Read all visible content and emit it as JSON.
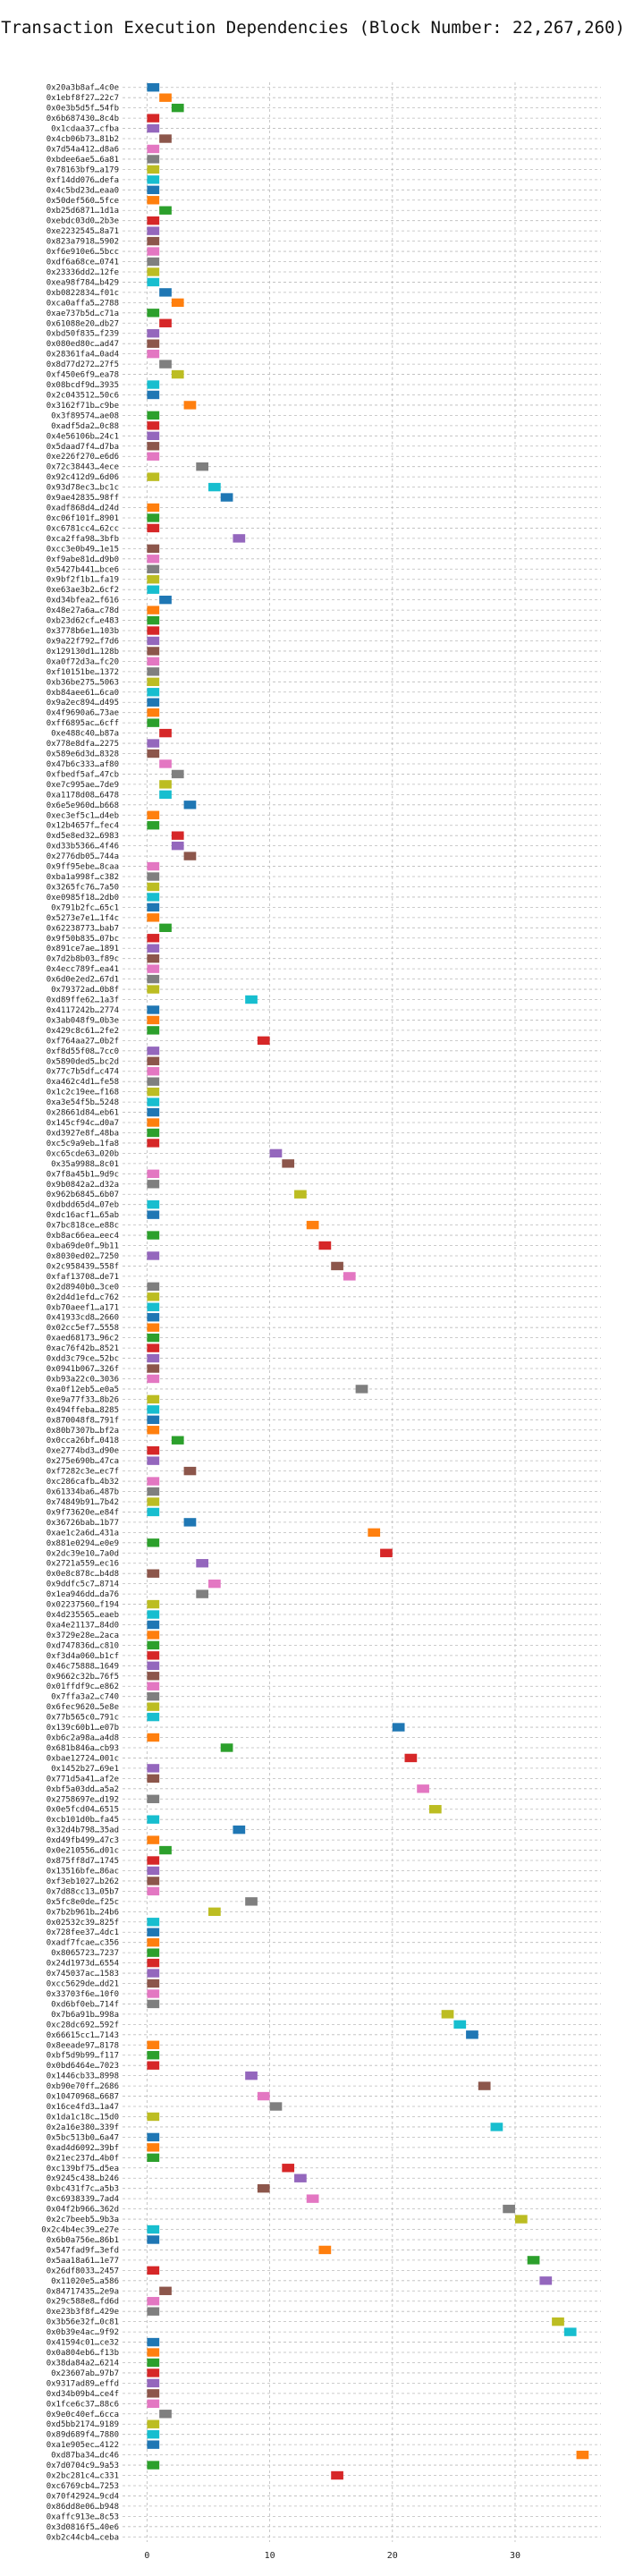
{
  "title": "Transaction Execution Dependencies (Block Number: 22,267,260)",
  "colors": [
    "#1f77b4",
    "#ff7f0e",
    "#2ca02c",
    "#d62728",
    "#9467bd",
    "#8c564b",
    "#e377c2",
    "#7f7f7f",
    "#bcbd22",
    "#17becf"
  ],
  "chart_data": {
    "type": "gantt",
    "title": "Transaction Execution Dependencies (Block Number: 22,267,260)",
    "xlabel": "",
    "ylabel": "",
    "xlim": [
      -2,
      37
    ],
    "xticks": [
      0,
      10,
      20,
      30
    ],
    "grid": true,
    "legend": "none",
    "categories": [
      "0x20a3b8af…4c0e",
      "0x1ebf8f27…22c7",
      "0x0e3b5d5f…54fb",
      "0x6b687430…8c4b",
      "0x1cdaa37…cfba",
      "0x4cb06b73…81b2",
      "0x7d54a412…d8a6",
      "0xbdee6ae5…6a81",
      "0x78163bf9…a179",
      "0xf14dd076…defa",
      "0x4c5bd23d…eaa0",
      "0x50def560…5fce",
      "0xb25d6871…1d1a",
      "0xebdc03d0…2b3e",
      "0xe2232545…8a71",
      "0x823a7918…5902",
      "0xf6e910e6…5bcc",
      "0xdf6a68ce…0741",
      "0x23336dd2…12fe",
      "0xea98f784…b429",
      "0xb0822834…f01c",
      "0xca0affa5…2788",
      "0xae737b5d…c71a",
      "0x61088e20…db27",
      "0xbd50f835…f239",
      "0x080ed80c…ad47",
      "0x28361fa4…0ad4",
      "0x8d77d272…27f5",
      "0xf450e6f9…ea78",
      "0x08bcdf9d…3935",
      "0x2c043512…50c6",
      "0x3162f71b…c9be",
      "0x3f89574…ae08",
      "0xadf5da2…0c88",
      "0x4e56106b…24c1",
      "0x5daad7f4…d7ba",
      "0xe226f270…e6d6",
      "0x72c38443…4ece",
      "0x92c412d9…6d06",
      "0x93d78ec3…bc1c",
      "0x9ae42835…98ff",
      "0xadf868d4…d24d",
      "0xc06f101f…8901",
      "0xc6781cc4…62cc",
      "0xca2ffa98…3bfb",
      "0xcc3e0b49…1e15",
      "0xf9abe81d…d9b0",
      "0x5427b441…bce6",
      "0x9bf2f1b1…fa19",
      "0xe63ae3b2…6cf2",
      "0xd34bfea2…f616",
      "0x48e27a6a…c78d",
      "0xb23d62cf…e483",
      "0x3778b6e1…103b",
      "0x9a22f792…f7d6",
      "0x129130d1…128b",
      "0xa0f72d3a…fc20",
      "0xf10151be…1372",
      "0xb36be275…5063",
      "0xb84aee61…6ca0",
      "0x9a2ec894…d495",
      "0x4f9690a6…73ae",
      "0xff6895ac…6cff",
      "0xe488c40…b87a",
      "0x778e8dfa…2275",
      "0x589e6d3d…8328",
      "0x47b6c333…af80",
      "0xfbedf5af…47cb",
      "0xe7c995ae…7de9",
      "0xa1178d08…6478",
      "0x6e5e960d…b668",
      "0xec3ef5c1…d4eb",
      "0x12b4657f…fec4",
      "0xd5e8ed32…6983",
      "0xd33b5366…4f46",
      "0x2776db05…744a",
      "0x9ff95ebe…8caa",
      "0xba1a998f…c382",
      "0x3265fc76…7a50",
      "0xe0985f18…2db0",
      "0x791b2fc…65c1",
      "0x5273e7e1…1f4c",
      "0x62238773…bab7",
      "0x9f50b835…07bc",
      "0x891ce7ae…1891",
      "0x7d2b8b03…f89c",
      "0x4ecc789f…ea41",
      "0x6d0e2ed2…67d1",
      "0x79372ad…0b8f",
      "0xd89ffe62…1a3f",
      "0x4117242b…2774",
      "0x3ab048f9…0b3e",
      "0x429c8c61…2fe2",
      "0xf764aa27…0b2f",
      "0xf8d55f08…7cc0",
      "0x5890ded5…bc2d",
      "0x77c7b5df…c474",
      "0xa462c4d1…fe58",
      "0x1c2c19ee…f168",
      "0xa3e54f5b…5248",
      "0x28661d84…eb61",
      "0x145cf94c…d0a7",
      "0xd3927e8f…48ba",
      "0xc5c9a9eb…1fa8",
      "0xc65cde63…020b",
      "0x35a9988…8c01",
      "0x7f8a45b1…9d9c",
      "0x9b0842a2…d32a",
      "0x962b6845…6b07",
      "0xdbdd65d4…07eb",
      "0xdc16acf1…65ab",
      "0x7bc818ce…e88c",
      "0xb8ac66ea…eec4",
      "0xba69de0f…9b11",
      "0x8030ed02…7250",
      "0x2c958439…558f",
      "0xfaf13708…de71",
      "0x2d8940b0…3ce0",
      "0x2d4d1efd…c762",
      "0xb70aeef1…a171",
      "0x41933cd8…2660",
      "0x02cc5ef7…5558",
      "0xaed68173…96c2",
      "0xac76f42b…8521",
      "0xdd3c79ce…52bc",
      "0x0941b067…326f",
      "0xb93a22c0…3036",
      "0xa0f12eb5…e0a5",
      "0xe9a77f33…8b26",
      "0x494ffeba…8285",
      "0x870048f8…791f",
      "0x80b7307b…bf2a",
      "0x0cca26bf…0418",
      "0xe2774bd3…d90e",
      "0x275e690b…47ca",
      "0xf7282c3e…ec7f",
      "0xc286cafb…4b32",
      "0x61334ba6…487b",
      "0x74849b91…7b42",
      "0x9f73620e…e84f",
      "0x36726bab…1b77",
      "0xae1c2a6d…431a",
      "0x881e0294…e0e9",
      "0x2dc39e10…7a0d",
      "0x2721a559…ec16",
      "0x0e8c878c…b4d8",
      "0x9ddfc5c7…8714",
      "0x1ea946dd…da76",
      "0x02237560…f194",
      "0x4d235565…eaeb",
      "0xa4e21137…84d0",
      "0x3729e28e…2aca",
      "0xd747836d…c810",
      "0xf3d4a060…b1cf",
      "0x46c75888…1649",
      "0x9662c32b…76f5",
      "0x01ffdf9c…e862",
      "0x7ffa3a2…c740",
      "0x6fec9620…5e8e",
      "0x77b565c0…791c",
      "0x139c60b1…e07b",
      "0xb6c2a98a…a4d8",
      "0x681b846a…cb93",
      "0xbae12724…001c",
      "0x1452b27…69e1",
      "0x771d5a41…af2e",
      "0xbf5a03dd…a5a2",
      "0x2758697e…d192",
      "0x0e5fcd04…6515",
      "0xcb101d0b…fa45",
      "0x32d4b798…35ad",
      "0xd49fb499…47c3",
      "0x0e210556…d01c",
      "0x875ff8d7…1745",
      "0x13516bfe…86ac",
      "0xf3eb1027…b262",
      "0x7d88cc13…05b7",
      "0x5fc8e0de…f25c",
      "0x7b2b961b…24b6",
      "0x02532c39…825f",
      "0x728fee37…4dc1",
      "0xadf7fcae…c356",
      "0x8065723…7237",
      "0x24d1973d…6554",
      "0x745037ac…1583",
      "0xcc5629de…dd21",
      "0x33703f6e…10f0",
      "0xd6bf0eb…714f",
      "0x7b6a91b…998a",
      "0xc28dc692…592f",
      "0x66615cc1…7143",
      "0x8eeade97…8178",
      "0xbf5d9b99…f117",
      "0x0bd6464e…7023",
      "0x1446cb33…8998",
      "0xb90e70ff…2686",
      "0x10470968…6687",
      "0x16ce4fd3…1a47",
      "0x1da1c18c…15d0",
      "0x2a16e380…339f",
      "0x5bc513b0…6a47",
      "0xad4d6092…39bf",
      "0x21ec237d…4b0f",
      "0xc139bf75…d5ea",
      "0x9245c438…b246",
      "0xbc431f7c…a5b3",
      "0xc6938339…7ad4",
      "0x04f2b966…362d",
      "0x2c7beeb5…9b3a",
      "0x2c4b4ec39…e27e",
      "0x6b0a756e…86b1",
      "0x547fad9f…3efd",
      "0x5aa18a61…1e77",
      "0x26df8033…2457",
      "0x11020e5…a586",
      "0x84717435…2e9a",
      "0x29c588e8…fd6d",
      "0xe23b3f8f…429e",
      "0x3b56e32f…0c81",
      "0x0b39e4ac…9f92",
      "0x41594c01…ce32",
      "0x0a804eb6…f13b",
      "0x38da84a2…6214",
      "0x23607ab…97b7",
      "0x9317ad89…effd",
      "0xd34b09b4…ce4f",
      "0x1fce6c37…88c6",
      "0x9e0c40ef…6cca",
      "0xd5bb2174…9189",
      "0x89d689f4…7880",
      "0xa1e905ec…4122",
      "0xd87ba34…dc46",
      "0x7d0704c9…9a53",
      "0x2bc281c4…c331",
      "0xc6769cb4…7253",
      "0x70f42924…9cd4",
      "0x86dd8e06…b948",
      "0xaffc913e…8c53",
      "0x3d0816f5…40e6",
      "0xb2c44cb4…ceba"
    ],
    "bars": [
      {
        "start": 0,
        "end": 1
      },
      {
        "start": 1,
        "end": 2
      },
      {
        "start": 2,
        "end": 3
      },
      {
        "start": 0,
        "end": 1
      },
      {
        "start": 0,
        "end": 1
      },
      {
        "start": 1,
        "end": 2
      },
      {
        "start": 0,
        "end": 1
      },
      {
        "start": 0,
        "end": 1
      },
      {
        "start": 0,
        "end": 1
      },
      {
        "start": 0,
        "end": 1
      },
      {
        "start": 0,
        "end": 1
      },
      {
        "start": 0,
        "end": 1
      },
      {
        "start": 1,
        "end": 2
      },
      {
        "start": 0,
        "end": 1
      },
      {
        "start": 0,
        "end": 1
      },
      {
        "start": 0,
        "end": 1
      },
      {
        "start": 0,
        "end": 1
      },
      {
        "start": 0,
        "end": 1
      },
      {
        "start": 0,
        "end": 1
      },
      {
        "start": 0,
        "end": 1
      },
      {
        "start": 1,
        "end": 2
      },
      {
        "start": 2,
        "end": 3
      },
      {
        "start": 0,
        "end": 1
      },
      {
        "start": 1,
        "end": 2
      },
      {
        "start": 0,
        "end": 1
      },
      {
        "start": 0,
        "end": 1
      },
      {
        "start": 0,
        "end": 1
      },
      {
        "start": 1,
        "end": 2
      },
      {
        "start": 2,
        "end": 3
      },
      {
        "start": 0,
        "end": 1
      },
      {
        "start": 0,
        "end": 1
      },
      {
        "start": 3,
        "end": 4
      },
      {
        "start": 0,
        "end": 1
      },
      {
        "start": 0,
        "end": 1
      },
      {
        "start": 0,
        "end": 1
      },
      {
        "start": 0,
        "end": 1
      },
      {
        "start": 0,
        "end": 1
      },
      {
        "start": 4,
        "end": 5
      },
      {
        "start": 0,
        "end": 1
      },
      {
        "start": 5,
        "end": 6
      },
      {
        "start": 6,
        "end": 7
      },
      {
        "start": 0,
        "end": 1
      },
      {
        "start": 0,
        "end": 1
      },
      {
        "start": 0,
        "end": 1
      },
      {
        "start": 7,
        "end": 8
      },
      {
        "start": 0,
        "end": 1
      },
      {
        "start": 0,
        "end": 1
      },
      {
        "start": 0,
        "end": 1
      },
      {
        "start": 0,
        "end": 1
      },
      {
        "start": 0,
        "end": 1
      },
      {
        "start": 1,
        "end": 2
      },
      {
        "start": 0,
        "end": 1
      },
      {
        "start": 0,
        "end": 1
      },
      {
        "start": 0,
        "end": 1
      },
      {
        "start": 0,
        "end": 1
      },
      {
        "start": 0,
        "end": 1
      },
      {
        "start": 0,
        "end": 1
      },
      {
        "start": 0,
        "end": 1
      },
      {
        "start": 0,
        "end": 1
      },
      {
        "start": 0,
        "end": 1
      },
      {
        "start": 0,
        "end": 1
      },
      {
        "start": 0,
        "end": 1
      },
      {
        "start": 0,
        "end": 1
      },
      {
        "start": 1,
        "end": 2
      },
      {
        "start": 0,
        "end": 1
      },
      {
        "start": 0,
        "end": 1
      },
      {
        "start": 1,
        "end": 2
      },
      {
        "start": 2,
        "end": 3
      },
      {
        "start": 1,
        "end": 2
      },
      {
        "start": 1,
        "end": 2
      },
      {
        "start": 3,
        "end": 4
      },
      {
        "start": 0,
        "end": 1
      },
      {
        "start": 0,
        "end": 1
      },
      {
        "start": 2,
        "end": 3
      },
      {
        "start": 2,
        "end": 3
      },
      {
        "start": 3,
        "end": 4
      },
      {
        "start": 0,
        "end": 1
      },
      {
        "start": 0,
        "end": 1
      },
      {
        "start": 0,
        "end": 1
      },
      {
        "start": 0,
        "end": 1
      },
      {
        "start": 0,
        "end": 1
      },
      {
        "start": 0,
        "end": 1
      },
      {
        "start": 1,
        "end": 2
      },
      {
        "start": 0,
        "end": 1
      },
      {
        "start": 0,
        "end": 1
      },
      {
        "start": 0,
        "end": 1
      },
      {
        "start": 0,
        "end": 1
      },
      {
        "start": 0,
        "end": 1
      },
      {
        "start": 0,
        "end": 1
      },
      {
        "start": 8,
        "end": 9
      },
      {
        "start": 0,
        "end": 1
      },
      {
        "start": 0,
        "end": 1
      },
      {
        "start": 0,
        "end": 1
      },
      {
        "start": 9,
        "end": 10
      },
      {
        "start": 0,
        "end": 1
      },
      {
        "start": 0,
        "end": 1
      },
      {
        "start": 0,
        "end": 1
      },
      {
        "start": 0,
        "end": 1
      },
      {
        "start": 0,
        "end": 1
      },
      {
        "start": 0,
        "end": 1
      },
      {
        "start": 0,
        "end": 1
      },
      {
        "start": 0,
        "end": 1
      },
      {
        "start": 0,
        "end": 1
      },
      {
        "start": 0,
        "end": 1
      },
      {
        "start": 10,
        "end": 11
      },
      {
        "start": 11,
        "end": 12
      },
      {
        "start": 0,
        "end": 1
      },
      {
        "start": 0,
        "end": 1
      },
      {
        "start": 12,
        "end": 13
      },
      {
        "start": 0,
        "end": 1
      },
      {
        "start": 0,
        "end": 1
      },
      {
        "start": 13,
        "end": 14
      },
      {
        "start": 0,
        "end": 1
      },
      {
        "start": 14,
        "end": 15
      },
      {
        "start": 0,
        "end": 1
      },
      {
        "start": 15,
        "end": 16
      },
      {
        "start": 16,
        "end": 17
      },
      {
        "start": 0,
        "end": 1
      },
      {
        "start": 0,
        "end": 1
      },
      {
        "start": 0,
        "end": 1
      },
      {
        "start": 0,
        "end": 1
      },
      {
        "start": 0,
        "end": 1
      },
      {
        "start": 0,
        "end": 1
      },
      {
        "start": 0,
        "end": 1
      },
      {
        "start": 0,
        "end": 1
      },
      {
        "start": 0,
        "end": 1
      },
      {
        "start": 0,
        "end": 1
      },
      {
        "start": 17,
        "end": 18
      },
      {
        "start": 0,
        "end": 1
      },
      {
        "start": 0,
        "end": 1
      },
      {
        "start": 0,
        "end": 1
      },
      {
        "start": 0,
        "end": 1
      },
      {
        "start": 2,
        "end": 3
      },
      {
        "start": 0,
        "end": 1
      },
      {
        "start": 0,
        "end": 1
      },
      {
        "start": 3,
        "end": 4
      },
      {
        "start": 0,
        "end": 1
      },
      {
        "start": 0,
        "end": 1
      },
      {
        "start": 0,
        "end": 1
      },
      {
        "start": 0,
        "end": 1
      },
      {
        "start": 3,
        "end": 4
      },
      {
        "start": 18,
        "end": 19
      },
      {
        "start": 0,
        "end": 1
      },
      {
        "start": 19,
        "end": 20
      },
      {
        "start": 4,
        "end": 5
      },
      {
        "start": 0,
        "end": 1
      },
      {
        "start": 5,
        "end": 6
      },
      {
        "start": 4,
        "end": 5
      },
      {
        "start": 0,
        "end": 1
      },
      {
        "start": 0,
        "end": 1
      },
      {
        "start": 0,
        "end": 1
      },
      {
        "start": 0,
        "end": 1
      },
      {
        "start": 0,
        "end": 1
      },
      {
        "start": 0,
        "end": 1
      },
      {
        "start": 0,
        "end": 1
      },
      {
        "start": 0,
        "end": 1
      },
      {
        "start": 0,
        "end": 1
      },
      {
        "start": 0,
        "end": 1
      },
      {
        "start": 0,
        "end": 1
      },
      {
        "start": 0,
        "end": 1
      },
      {
        "start": 20,
        "end": 21
      },
      {
        "start": 0,
        "end": 1
      },
      {
        "start": 6,
        "end": 7
      },
      {
        "start": 21,
        "end": 22
      },
      {
        "start": 0,
        "end": 1
      },
      {
        "start": 0,
        "end": 1
      },
      {
        "start": 22,
        "end": 23
      },
      {
        "start": 0,
        "end": 1
      },
      {
        "start": 23,
        "end": 24
      },
      {
        "start": 0,
        "end": 1
      },
      {
        "start": 7,
        "end": 8
      },
      {
        "start": 0,
        "end": 1
      },
      {
        "start": 1,
        "end": 2
      },
      {
        "start": 0,
        "end": 1
      },
      {
        "start": 0,
        "end": 1
      },
      {
        "start": 0,
        "end": 1
      },
      {
        "start": 0,
        "end": 1
      },
      {
        "start": 8,
        "end": 9
      },
      {
        "start": 5,
        "end": 6
      },
      {
        "start": 0,
        "end": 1
      },
      {
        "start": 0,
        "end": 1
      },
      {
        "start": 0,
        "end": 1
      },
      {
        "start": 0,
        "end": 1
      },
      {
        "start": 0,
        "end": 1
      },
      {
        "start": 0,
        "end": 1
      },
      {
        "start": 0,
        "end": 1
      },
      {
        "start": 0,
        "end": 1
      },
      {
        "start": 0,
        "end": 1
      },
      {
        "start": 24,
        "end": 25
      },
      {
        "start": 25,
        "end": 26
      },
      {
        "start": 26,
        "end": 27
      },
      {
        "start": 0,
        "end": 1
      },
      {
        "start": 0,
        "end": 1
      },
      {
        "start": 0,
        "end": 1
      },
      {
        "start": 8,
        "end": 9
      },
      {
        "start": 27,
        "end": 28
      },
      {
        "start": 9,
        "end": 10
      },
      {
        "start": 10,
        "end": 11
      },
      {
        "start": 0,
        "end": 1
      },
      {
        "start": 28,
        "end": 29
      },
      {
        "start": 0,
        "end": 1
      },
      {
        "start": 0,
        "end": 1
      },
      {
        "start": 0,
        "end": 1
      },
      {
        "start": 11,
        "end": 12
      },
      {
        "start": 12,
        "end": 13
      },
      {
        "start": 9,
        "end": 10
      },
      {
        "start": 13,
        "end": 14
      },
      {
        "start": 29,
        "end": 30
      },
      {
        "start": 30,
        "end": 31
      },
      {
        "start": 0,
        "end": 1
      },
      {
        "start": 0,
        "end": 1
      },
      {
        "start": 14,
        "end": 15
      },
      {
        "start": 31,
        "end": 32
      },
      {
        "start": 0,
        "end": 1
      },
      {
        "start": 32,
        "end": 33
      },
      {
        "start": 1,
        "end": 2
      },
      {
        "start": 0,
        "end": 1
      },
      {
        "start": 0,
        "end": 1
      },
      {
        "start": 33,
        "end": 34
      },
      {
        "start": 34,
        "end": 35
      },
      {
        "start": 0,
        "end": 1
      },
      {
        "start": 0,
        "end": 1
      },
      {
        "start": 0,
        "end": 1
      },
      {
        "start": 0,
        "end": 1
      },
      {
        "start": 0,
        "end": 1
      },
      {
        "start": 0,
        "end": 1
      },
      {
        "start": 0,
        "end": 1
      },
      {
        "start": 1,
        "end": 2
      },
      {
        "start": 0,
        "end": 1
      },
      {
        "start": 0,
        "end": 1
      },
      {
        "start": 0,
        "end": 1
      },
      {
        "start": 35,
        "end": 36
      },
      {
        "start": 0,
        "end": 1
      },
      {
        "start": 15,
        "end": 16
      }
    ]
  }
}
